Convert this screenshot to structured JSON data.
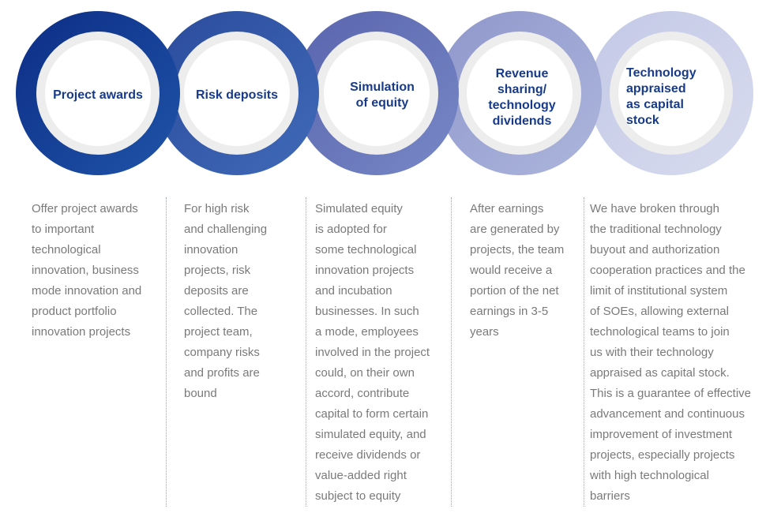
{
  "colors": {
    "title_text": "#173a8a",
    "body_text": "#7a7a7a",
    "inner_ring": "#ededed",
    "divider": "#8fa3c4"
  },
  "stages": [
    {
      "title": "Project awards",
      "description": "Offer project awards\nto important\ntechnological\ninnovation, business\nmode innovation and\nproduct portfolio\ninnovation projects",
      "ring_gradient": [
        "#0d2d86",
        "#1f54a8"
      ]
    },
    {
      "title": "Risk deposits",
      "description": "For high risk\nand challenging\ninnovation\nprojects, risk\ndeposits are\ncollected. The\nproject team,\ncompany risks\nand profits are\nbound",
      "ring_gradient": [
        "#2c4b9c",
        "#3f6ab8"
      ]
    },
    {
      "title": "Simulation\nof equity",
      "description": "Simulated equity\nis adopted for\nsome technological\ninnovation projects\nand incubation\nbusinesses. In such\na mode, employees\ninvolved in the project\ncould, on their own\naccord, contribute\ncapital to form certain\nsimulated equity, and\nreceive dividends or\nvalue-added right\nsubject to equity",
      "ring_gradient": [
        "#5964ad",
        "#7788c6"
      ]
    },
    {
      "title": "Revenue\nsharing/\ntechnology\ndividends",
      "description": "After earnings\nare generated by\nprojects, the team\nwould receive a\nportion of the net\nearnings in 3-5\nyears",
      "ring_gradient": [
        "#8f97cc",
        "#adb6dc"
      ]
    },
    {
      "title": "Technology\nappraised\nas capital\nstock",
      "description": "We have broken through\nthe traditional technology\nbuyout and authorization\ncooperation practices and the\nlimit of institutional system\nof SOEs, allowing external\ntechnological teams to join\nus with their technology\nappraised as capital stock.\nThis is a guarantee of effective\nadvancement and continuous\nimprovement of investment\nprojects, especially projects\nwith high technological\nbarriers",
      "ring_gradient": [
        "#c3c8e6",
        "#d8dcef"
      ]
    }
  ]
}
